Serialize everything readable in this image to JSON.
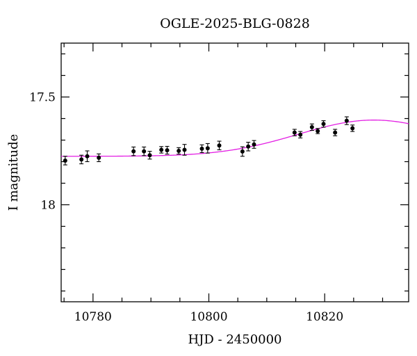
{
  "chart_data": {
    "type": "scatter",
    "title": "OGLE-2025-BLG-0828",
    "xlabel": "HJD - 2450000",
    "ylabel": "I magnitude",
    "xlim": [
      10774.5,
      10834.5
    ],
    "ylim": [
      18.45,
      17.25
    ],
    "y_inverted": true,
    "x_major_ticks": [
      10780,
      10800,
      10820
    ],
    "x_minor_step": 5,
    "y_major_ticks": [
      17.5,
      18
    ],
    "y_tick_labels": [
      "17.5",
      "18"
    ],
    "y_minor_step": 0.1,
    "grid": false,
    "series": [
      {
        "kind": "points_with_errorbars",
        "color": "#000000",
        "points": [
          {
            "x": 10775.2,
            "y": 17.795,
            "err": 0.02
          },
          {
            "x": 10778.0,
            "y": 17.79,
            "err": 0.02
          },
          {
            "x": 10779.0,
            "y": 17.775,
            "err": 0.025
          },
          {
            "x": 10781.0,
            "y": 17.782,
            "err": 0.018
          },
          {
            "x": 10787.0,
            "y": 17.752,
            "err": 0.02
          },
          {
            "x": 10788.8,
            "y": 17.752,
            "err": 0.02
          },
          {
            "x": 10789.8,
            "y": 17.77,
            "err": 0.018
          },
          {
            "x": 10791.8,
            "y": 17.745,
            "err": 0.015
          },
          {
            "x": 10792.8,
            "y": 17.747,
            "err": 0.018
          },
          {
            "x": 10794.8,
            "y": 17.75,
            "err": 0.015
          },
          {
            "x": 10795.8,
            "y": 17.745,
            "err": 0.025
          },
          {
            "x": 10798.8,
            "y": 17.74,
            "err": 0.018
          },
          {
            "x": 10799.8,
            "y": 17.738,
            "err": 0.022
          },
          {
            "x": 10801.8,
            "y": 17.725,
            "err": 0.02
          },
          {
            "x": 10805.8,
            "y": 17.753,
            "err": 0.022
          },
          {
            "x": 10806.8,
            "y": 17.73,
            "err": 0.02
          },
          {
            "x": 10807.8,
            "y": 17.72,
            "err": 0.018
          },
          {
            "x": 10814.8,
            "y": 17.665,
            "err": 0.015
          },
          {
            "x": 10815.8,
            "y": 17.675,
            "err": 0.015
          },
          {
            "x": 10817.8,
            "y": 17.64,
            "err": 0.015
          },
          {
            "x": 10818.8,
            "y": 17.658,
            "err": 0.012
          },
          {
            "x": 10819.8,
            "y": 17.625,
            "err": 0.015
          },
          {
            "x": 10821.8,
            "y": 17.665,
            "err": 0.015
          },
          {
            "x": 10823.8,
            "y": 17.61,
            "err": 0.018
          },
          {
            "x": 10824.8,
            "y": 17.645,
            "err": 0.015
          }
        ]
      },
      {
        "kind": "model_curve",
        "color": "#e31ee3",
        "peak_x": 10828.5,
        "peak_y": 17.607,
        "baseline_y": 17.775,
        "width": 18.5
      }
    ]
  }
}
